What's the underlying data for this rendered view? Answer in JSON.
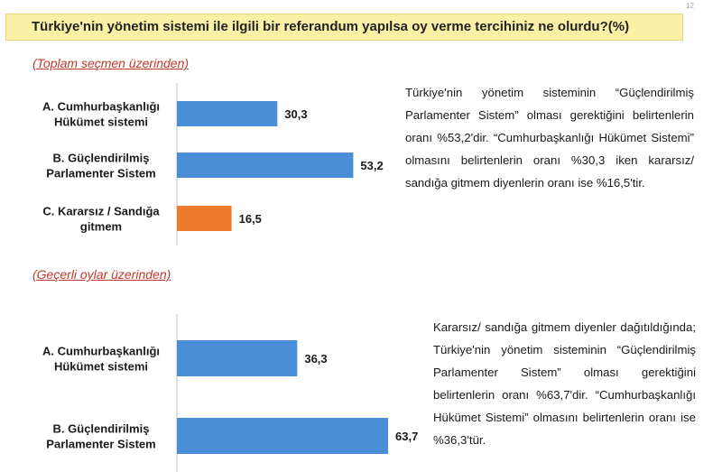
{
  "title": "Türkiye'nin yönetim sistemi ile ilgili bir referandum yapılsa oy verme tercihiniz ne olurdu?(%)",
  "page_number": "12",
  "chart_data": [
    {
      "type": "bar",
      "subtitle": "(Toplam seçmen üzerinden)",
      "categories": [
        [
          "A. Cumhurbaşkanlığı",
          "Hükümet sistemi"
        ],
        [
          "B. Güçlendirilmiş",
          "Parlamenter Sistem"
        ],
        [
          "C. Kararsız / Sandığa",
          "gitmem"
        ]
      ],
      "values": [
        30.3,
        53.2,
        16.5
      ],
      "value_labels": [
        "30,3",
        "53,2",
        "16,5"
      ],
      "colors": [
        "#4a8ed8",
        "#4a8ed8",
        "#ee7a2e"
      ],
      "xlim": [
        0,
        63.7
      ]
    },
    {
      "type": "bar",
      "subtitle": "(Geçerli oylar üzerinden)",
      "categories": [
        [
          "A. Cumhurbaşkanlığı",
          "Hükümet sistemi"
        ],
        [
          "B. Güçlendirilmiş",
          "Parlamenter Sistem"
        ]
      ],
      "values": [
        36.3,
        63.7
      ],
      "value_labels": [
        "36,3",
        "63,7"
      ],
      "colors": [
        "#4a8ed8",
        "#4a8ed8"
      ],
      "xlim": [
        0,
        63.7
      ]
    }
  ],
  "paragraphs": [
    "Türkiye'nin yönetim sisteminin “Güçlendirilmiş Parlamenter Sistem” olması gerektiğini belirtenlerin oranı %53,2'dir. “Cumhurbaşkanlığı Hükümet Sistemi” olmasını belirtenlerin oranı %30,3 iken kararsız/ sandığa gitmem diyenlerin oranı ise %16,5'tir.",
    "Kararsız/ sandığa gitmem diyenler dağıtıldığında; Türkiye'nin yönetim sisteminin “Güçlendirilmiş Parlamenter Sistem” olması gerektiğini belirtenlerin oranı %63,7'dir. “Cumhurbaşkanlığı Hükümet Sistemi” olmasını belirtenlerin oranı ise %36,3'tür."
  ]
}
